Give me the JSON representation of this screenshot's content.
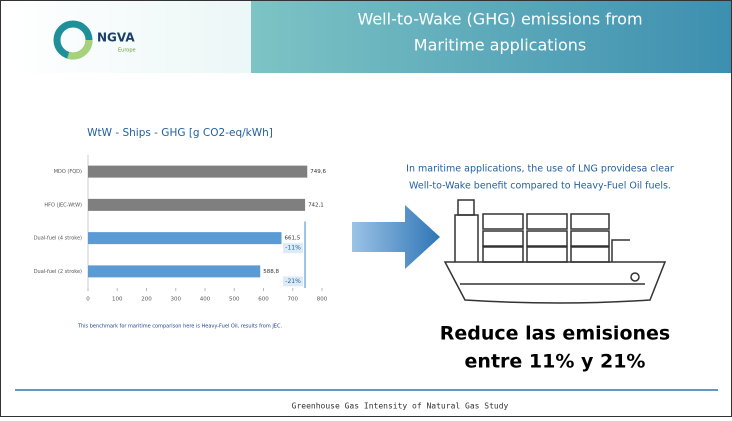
{
  "slide": {
    "title_lines": [
      "Well-to-Wake (GHG) emissions from",
      "Maritime applications"
    ],
    "logo": {
      "name": "NGVA",
      "sub": "Europe"
    },
    "message_lines": [
      "In maritime applications, the use of LNG providesa clear",
      "Well-to-Wake benefit compared to Heavy-Fuel Oil fuels."
    ],
    "highlight_lines": [
      "Reduce las emisiones",
      "entre 11% y 21%"
    ],
    "footer": "Greenhouse Gas Intensity of Natural Gas Study"
  },
  "chart_data": {
    "type": "hbar",
    "title": "WtW - Ships - GHG [g CO2-eq/kWh]",
    "categories": [
      "MDO (FQD)",
      "HFO (JEC-WtW)",
      "Dual-fuel (4 stroke)",
      "Dual-fuel (2 stroke)"
    ],
    "values": [
      749.6,
      742.1,
      661.5,
      588.8
    ],
    "value_labels": [
      "749,6",
      "742,1",
      "661,5",
      "588,8"
    ],
    "colors": [
      "#7f7f7f",
      "#7f7f7f",
      "#5b9bd5",
      "#5b9bd5"
    ],
    "annotations": [
      "-11%",
      "-21%"
    ],
    "xlim": [
      0,
      800
    ],
    "xticks": [
      0,
      100,
      200,
      300,
      400,
      500,
      600,
      700,
      800
    ],
    "note": "This benchmark for maritime comparison here is Heavy-Fuel Oil, results from JEC."
  }
}
